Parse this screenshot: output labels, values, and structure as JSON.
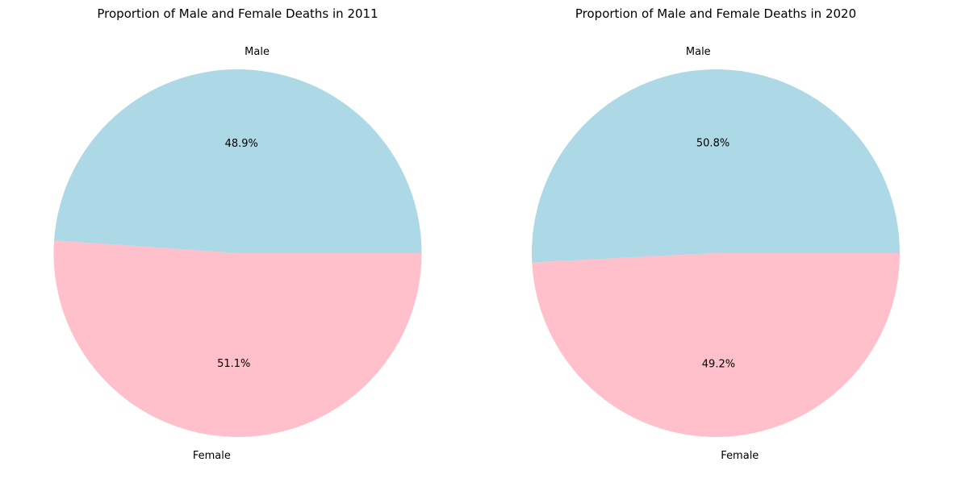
{
  "chart_data": [
    {
      "type": "pie",
      "title": "Proportion of Male and Female Deaths in 2011",
      "slices": [
        {
          "label": "Male",
          "value": 48.9,
          "pct_label": "48.9%",
          "color": "#add8e6"
        },
        {
          "label": "Female",
          "value": 51.1,
          "pct_label": "51.1%",
          "color": "#ffc0cb"
        }
      ],
      "start_angle_deg": 0,
      "direction": "counterclockwise"
    },
    {
      "type": "pie",
      "title": "Proportion of Male and Female Deaths in 2020",
      "slices": [
        {
          "label": "Male",
          "value": 50.8,
          "pct_label": "50.8%",
          "color": "#add8e6"
        },
        {
          "label": "Female",
          "value": 49.2,
          "pct_label": "49.2%",
          "color": "#ffc0cb"
        }
      ],
      "start_angle_deg": 0,
      "direction": "counterclockwise"
    }
  ]
}
